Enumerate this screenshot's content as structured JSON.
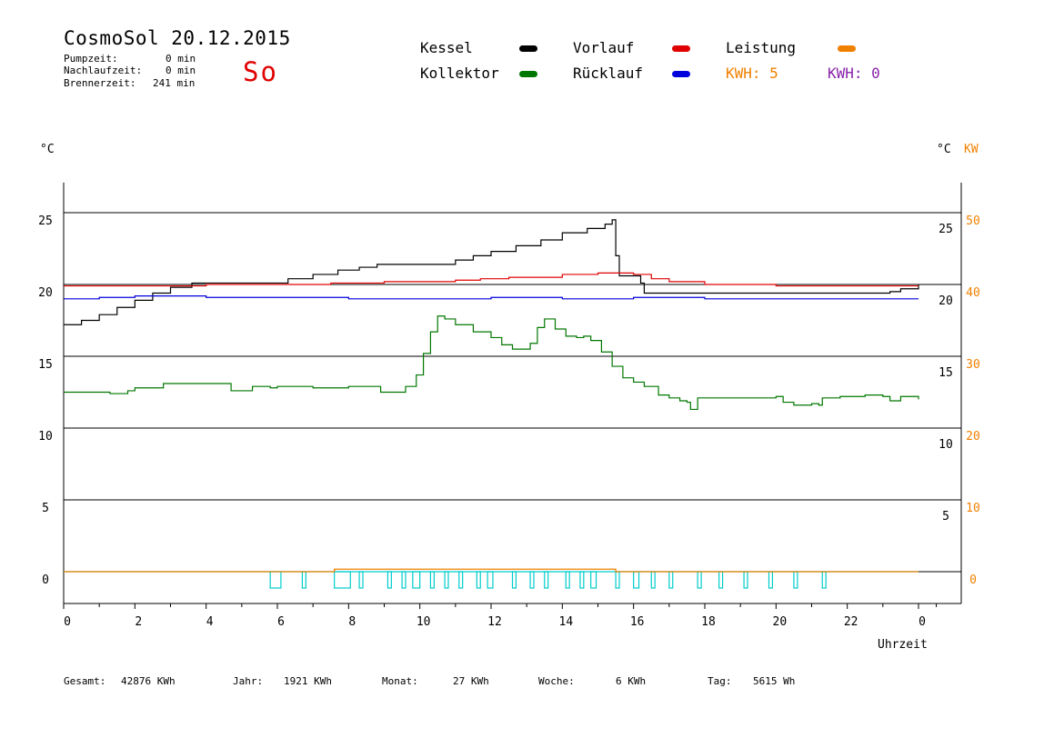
{
  "header": {
    "title": "CosmoSol 20.12.2015",
    "day": "So",
    "pump_label": "Pumpzeit:",
    "pump_value": "0 min",
    "nachlauf_label": "Nachlaufzeit:",
    "nachlauf_value": "0 min",
    "brenner_label": "Brennerzeit:",
    "brenner_value": "241 min"
  },
  "legend": {
    "kessel": "Kessel",
    "kollektor": "Kollektor",
    "vorlauf": "Vorlauf",
    "ruecklauf": "Rücklauf",
    "leistung": "Leistung",
    "kwh_orange": "KWH: 5",
    "kwh_purple": "KWH: 0",
    "colors": {
      "kessel": "#000000",
      "kollektor": "#007700",
      "vorlauf": "#e00000",
      "ruecklauf": "#0000dd",
      "leistung": "#f08000",
      "purple": "#8822aa",
      "pump": "#00cccc"
    }
  },
  "axes": {
    "left_unit": "°C",
    "right_unit_c": "°C",
    "right_unit_kw": "KW",
    "xlabel": "Uhrzeit"
  },
  "footer": {
    "gesamt_label": "Gesamt:",
    "gesamt_value": "42876 KWh",
    "jahr_label": "Jahr:",
    "jahr_value": "1921 KWh",
    "monat_label": "Monat:",
    "monat_value": "27 KWh",
    "woche_label": "Woche:",
    "woche_value": "6 KWh",
    "tag_label": "Tag:",
    "tag_value": "5615 Wh"
  },
  "chart_data": {
    "type": "line",
    "xlim": [
      0,
      24
    ],
    "ylim": [
      -1,
      27
    ],
    "y2lim": [
      -2,
      54
    ],
    "x_ticks": [
      "0",
      "2",
      "4",
      "6",
      "8",
      "10",
      "12",
      "14",
      "16",
      "18",
      "20",
      "22",
      "0"
    ],
    "y_left_ticks": [
      "25",
      "20",
      "15",
      "10",
      "5",
      "0"
    ],
    "y_right_c_ticks": [
      "25",
      "20",
      "15",
      "10",
      "5"
    ],
    "y_right_kw_ticks": [
      "50",
      "40",
      "30",
      "20",
      "10",
      "0"
    ],
    "gridlines_y": [
      0,
      5,
      10,
      15,
      20,
      25
    ],
    "series": [
      {
        "name": "Kessel",
        "color": "#000000",
        "points": [
          [
            0,
            17.2
          ],
          [
            0.5,
            17.5
          ],
          [
            1,
            17.9
          ],
          [
            1.5,
            18.4
          ],
          [
            2,
            18.9
          ],
          [
            2.5,
            19.4
          ],
          [
            3,
            19.8
          ],
          [
            3.6,
            20.1
          ],
          [
            4,
            20.1
          ],
          [
            5.5,
            20.1
          ],
          [
            6.1,
            20.1
          ],
          [
            6.3,
            20.4
          ],
          [
            7,
            20.7
          ],
          [
            7.7,
            21.0
          ],
          [
            8.3,
            21.2
          ],
          [
            8.8,
            21.4
          ],
          [
            10.3,
            21.4
          ],
          [
            11,
            21.7
          ],
          [
            11.5,
            22.0
          ],
          [
            12,
            22.3
          ],
          [
            12.7,
            22.7
          ],
          [
            13.4,
            23.1
          ],
          [
            14,
            23.6
          ],
          [
            14.7,
            23.9
          ],
          [
            15.2,
            24.2
          ],
          [
            15.4,
            24.5
          ],
          [
            15.5,
            22.0
          ],
          [
            15.6,
            20.6
          ],
          [
            16.1,
            20.6
          ],
          [
            16.2,
            20.1
          ],
          [
            16.3,
            19.4
          ],
          [
            20,
            19.4
          ],
          [
            22,
            19.4
          ],
          [
            22.9,
            19.4
          ],
          [
            23.2,
            19.5
          ],
          [
            23.5,
            19.7
          ],
          [
            24,
            20.0
          ]
        ]
      },
      {
        "name": "Vorlauf",
        "color": "#e00000",
        "points": [
          [
            0,
            19.9
          ],
          [
            2,
            19.9
          ],
          [
            4,
            20.0
          ],
          [
            6,
            20.0
          ],
          [
            7.5,
            20.1
          ],
          [
            9,
            20.2
          ],
          [
            11,
            20.3
          ],
          [
            11.7,
            20.4
          ],
          [
            12.5,
            20.5
          ],
          [
            14,
            20.7
          ],
          [
            15,
            20.8
          ],
          [
            15.5,
            20.8
          ],
          [
            16,
            20.7
          ],
          [
            16.5,
            20.4
          ],
          [
            17,
            20.2
          ],
          [
            18,
            20.0
          ],
          [
            20,
            19.9
          ],
          [
            22,
            19.9
          ],
          [
            24,
            19.9
          ]
        ]
      },
      {
        "name": "Rücklauf",
        "color": "#0000dd",
        "points": [
          [
            0,
            19.0
          ],
          [
            1,
            19.1
          ],
          [
            2,
            19.2
          ],
          [
            4,
            19.1
          ],
          [
            6,
            19.1
          ],
          [
            8,
            19.0
          ],
          [
            10,
            19.0
          ],
          [
            12,
            19.1
          ],
          [
            14,
            19.0
          ],
          [
            16,
            19.1
          ],
          [
            18,
            19.0
          ],
          [
            20,
            19.0
          ],
          [
            22,
            19.0
          ],
          [
            24,
            19.0
          ]
        ]
      },
      {
        "name": "Kollektor",
        "color": "#007700",
        "points": [
          [
            0,
            12.5
          ],
          [
            1,
            12.5
          ],
          [
            1.3,
            12.4
          ],
          [
            1.8,
            12.6
          ],
          [
            2,
            12.8
          ],
          [
            2.5,
            12.8
          ],
          [
            2.8,
            13.1
          ],
          [
            3.3,
            13.1
          ],
          [
            4,
            13.1
          ],
          [
            4.6,
            13.1
          ],
          [
            4.7,
            12.6
          ],
          [
            5,
            12.6
          ],
          [
            5.3,
            12.9
          ],
          [
            5.8,
            12.8
          ],
          [
            6,
            12.9
          ],
          [
            7,
            12.8
          ],
          [
            8,
            12.9
          ],
          [
            8.8,
            12.9
          ],
          [
            8.9,
            12.5
          ],
          [
            9.2,
            12.5
          ],
          [
            9.6,
            12.9
          ],
          [
            9.9,
            13.7
          ],
          [
            10.1,
            15.2
          ],
          [
            10.3,
            16.7
          ],
          [
            10.5,
            17.8
          ],
          [
            10.7,
            17.6
          ],
          [
            11,
            17.2
          ],
          [
            11.5,
            16.7
          ],
          [
            12,
            16.3
          ],
          [
            12.3,
            15.8
          ],
          [
            12.6,
            15.5
          ],
          [
            12.9,
            15.5
          ],
          [
            13.1,
            15.9
          ],
          [
            13.3,
            17.0
          ],
          [
            13.5,
            17.6
          ],
          [
            13.8,
            16.9
          ],
          [
            14.1,
            16.4
          ],
          [
            14.4,
            16.3
          ],
          [
            14.6,
            16.4
          ],
          [
            14.8,
            16.1
          ],
          [
            15.1,
            15.3
          ],
          [
            15.4,
            14.3
          ],
          [
            15.7,
            13.5
          ],
          [
            16,
            13.2
          ],
          [
            16.3,
            12.9
          ],
          [
            16.7,
            12.3
          ],
          [
            17,
            12.1
          ],
          [
            17.3,
            11.9
          ],
          [
            17.5,
            11.8
          ],
          [
            17.6,
            11.3
          ],
          [
            17.8,
            12.1
          ],
          [
            18.3,
            12.1
          ],
          [
            19,
            12.1
          ],
          [
            19.5,
            12.1
          ],
          [
            20,
            12.2
          ],
          [
            20.2,
            11.8
          ],
          [
            20.5,
            11.6
          ],
          [
            21,
            11.7
          ],
          [
            21.2,
            11.6
          ],
          [
            21.3,
            12.1
          ],
          [
            21.8,
            12.2
          ],
          [
            22.5,
            12.3
          ],
          [
            23,
            12.2
          ],
          [
            23.2,
            11.9
          ],
          [
            23.5,
            12.2
          ],
          [
            24,
            12.0
          ]
        ]
      }
    ],
    "leistung_kw": {
      "name": "Leistung",
      "color": "#f08000",
      "points": [
        [
          0,
          0
        ],
        [
          7.6,
          0
        ],
        [
          7.6,
          0.35
        ],
        [
          15.5,
          0.35
        ],
        [
          15.5,
          0
        ],
        [
          24,
          0
        ]
      ]
    },
    "pumps": {
      "color": "#00cccc",
      "pulses": [
        [
          5.8,
          6.1
        ],
        [
          6.7,
          6.8
        ],
        [
          7.6,
          8.05
        ],
        [
          8.3,
          8.4
        ],
        [
          9.1,
          9.2
        ],
        [
          9.5,
          9.6
        ],
        [
          9.8,
          10.0
        ],
        [
          10.3,
          10.4
        ],
        [
          10.7,
          10.8
        ],
        [
          11.1,
          11.2
        ],
        [
          11.6,
          11.7
        ],
        [
          11.9,
          12.05
        ],
        [
          12.6,
          12.7
        ],
        [
          13.1,
          13.2
        ],
        [
          13.5,
          13.6
        ],
        [
          14.1,
          14.2
        ],
        [
          14.5,
          14.6
        ],
        [
          14.8,
          14.95
        ],
        [
          15.5,
          15.6
        ],
        [
          16.0,
          16.15
        ],
        [
          16.5,
          16.6
        ],
        [
          17.0,
          17.1
        ],
        [
          17.8,
          17.9
        ],
        [
          18.4,
          18.5
        ],
        [
          19.1,
          19.2
        ],
        [
          19.8,
          19.9
        ],
        [
          20.5,
          20.6
        ],
        [
          21.3,
          21.4
        ]
      ]
    }
  }
}
